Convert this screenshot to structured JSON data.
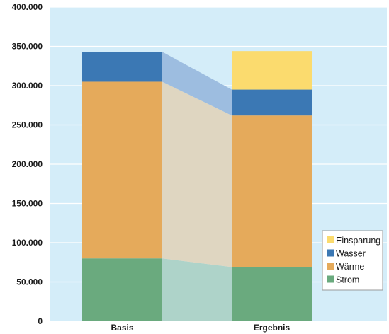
{
  "chart_data": {
    "type": "bar",
    "stacked": true,
    "categories": [
      "Basis",
      "Ergebnis"
    ],
    "series": [
      {
        "name": "Strom",
        "values": [
          80000,
          69000
        ],
        "color": "#6aaa7e"
      },
      {
        "name": "Wärme",
        "values": [
          225000,
          193000
        ],
        "color": "#e5aa5b"
      },
      {
        "name": "Wasser",
        "values": [
          38000,
          33000
        ],
        "color": "#3b78b4"
      },
      {
        "name": "Einsparung",
        "values": [
          0,
          49000
        ],
        "color": "#fbdb6e"
      }
    ],
    "connector_colors": {
      "Strom": "#aed3c9",
      "Wärme": "#dfd6c1",
      "Wasser": "#9dbde0"
    },
    "ylim": [
      0,
      400000
    ],
    "yticks": [
      0,
      50000,
      100000,
      150000,
      200000,
      250000,
      300000,
      350000,
      400000
    ],
    "ytick_labels": [
      "0",
      "50.000",
      "100.000",
      "150.000",
      "200.000",
      "250.000",
      "300.000",
      "350.000",
      "400.000"
    ],
    "plot_background": "#d4edf9",
    "legend_position": "bottom-right",
    "legend_order": [
      "Einsparung",
      "Wasser",
      "Wärme",
      "Strom"
    ]
  }
}
